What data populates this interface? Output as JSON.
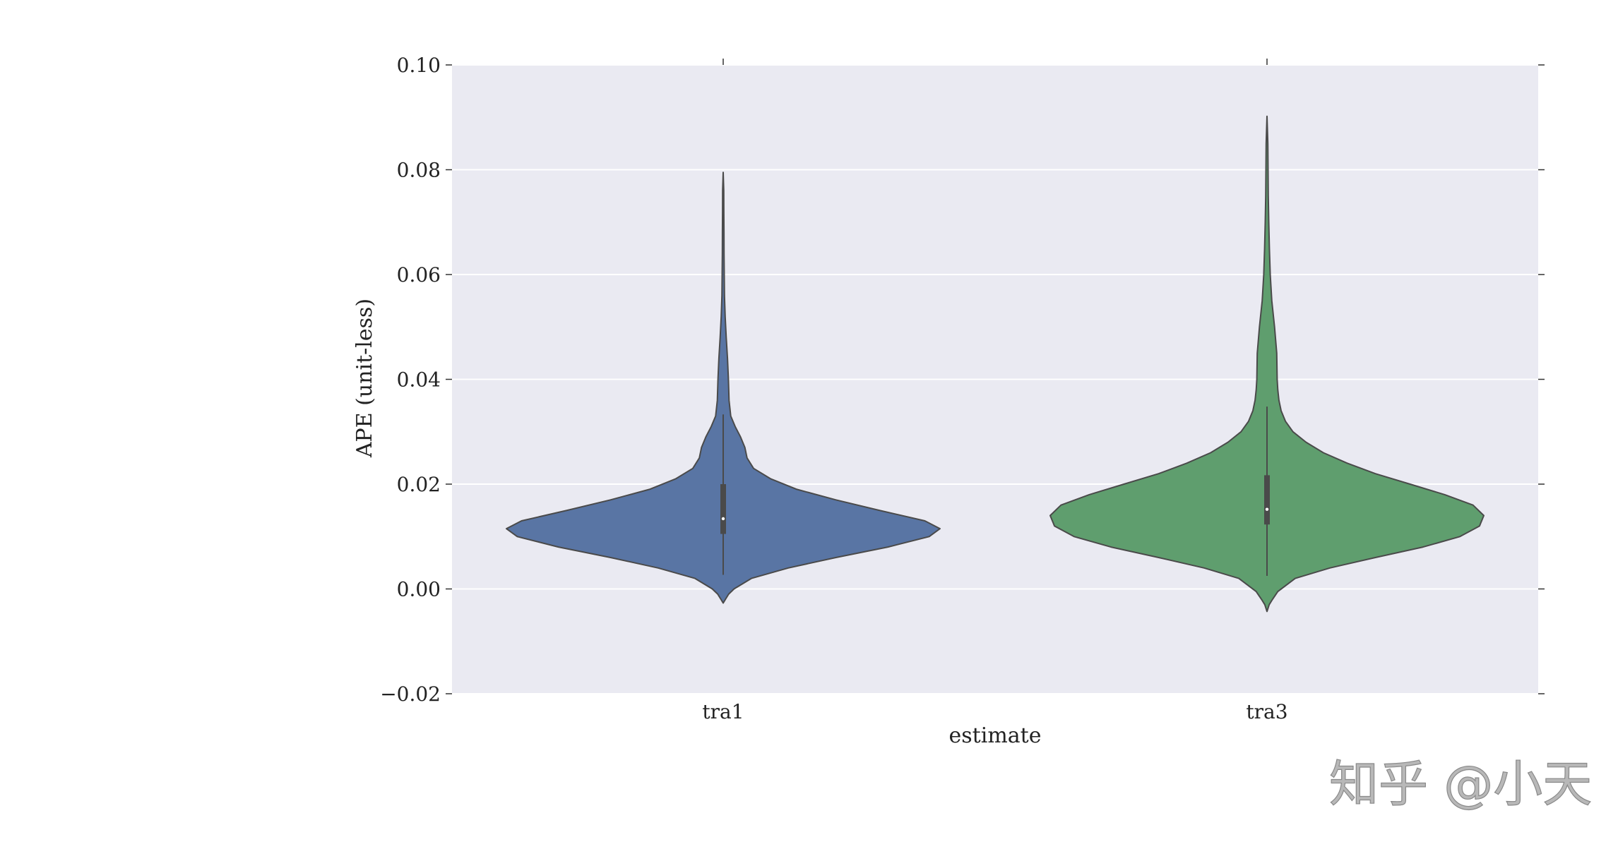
{
  "chart_data": {
    "type": "violin",
    "xlabel": "estimate",
    "ylabel": "APE (unit-less)",
    "ylim": [
      -0.02,
      0.1
    ],
    "yticks": [
      -0.02,
      0.0,
      0.02,
      0.04,
      0.06,
      0.08,
      0.1
    ],
    "ytick_labels": [
      "−0.02",
      "0.00",
      "0.02",
      "0.04",
      "0.06",
      "0.08",
      "0.10"
    ],
    "categories": [
      "tra1",
      "tra3"
    ],
    "grid": true,
    "series": [
      {
        "name": "tra1",
        "color": "#5975a4",
        "min": -0.0027,
        "max": 0.0795,
        "q1": 0.0105,
        "median": 0.0134,
        "q3": 0.02,
        "whisker_low": 0.0027,
        "whisker_high": 0.0333,
        "profile": [
          [
            -0.0027,
            0.0
          ],
          [
            -0.002,
            0.01
          ],
          [
            -0.001,
            0.025
          ],
          [
            0.0,
            0.05
          ],
          [
            0.002,
            0.13
          ],
          [
            0.004,
            0.3
          ],
          [
            0.006,
            0.52
          ],
          [
            0.008,
            0.76
          ],
          [
            0.01,
            0.95
          ],
          [
            0.0115,
            1.0
          ],
          [
            0.013,
            0.93
          ],
          [
            0.015,
            0.72
          ],
          [
            0.017,
            0.52
          ],
          [
            0.019,
            0.34
          ],
          [
            0.021,
            0.22
          ],
          [
            0.023,
            0.14
          ],
          [
            0.025,
            0.11
          ],
          [
            0.027,
            0.1
          ],
          [
            0.029,
            0.08
          ],
          [
            0.031,
            0.055
          ],
          [
            0.033,
            0.035
          ],
          [
            0.036,
            0.027
          ],
          [
            0.04,
            0.024
          ],
          [
            0.044,
            0.02
          ],
          [
            0.048,
            0.014
          ],
          [
            0.052,
            0.009
          ],
          [
            0.056,
            0.006
          ],
          [
            0.06,
            0.005
          ],
          [
            0.064,
            0.004
          ],
          [
            0.068,
            0.0035
          ],
          [
            0.072,
            0.003
          ],
          [
            0.076,
            0.0025
          ],
          [
            0.0795,
            0.0
          ]
        ]
      },
      {
        "name": "tra3",
        "color": "#5f9e6e",
        "min": -0.0043,
        "max": 0.0902,
        "q1": 0.0123,
        "median": 0.0152,
        "q3": 0.0217,
        "whisker_low": 0.0025,
        "whisker_high": 0.0348,
        "profile": [
          [
            -0.0043,
            0.0
          ],
          [
            -0.003,
            0.01
          ],
          [
            -0.002,
            0.025
          ],
          [
            -0.0005,
            0.05
          ],
          [
            0.002,
            0.13
          ],
          [
            0.004,
            0.29
          ],
          [
            0.006,
            0.5
          ],
          [
            0.008,
            0.72
          ],
          [
            0.01,
            0.89
          ],
          [
            0.012,
            0.98
          ],
          [
            0.014,
            1.0
          ],
          [
            0.016,
            0.95
          ],
          [
            0.018,
            0.82
          ],
          [
            0.02,
            0.66
          ],
          [
            0.022,
            0.5
          ],
          [
            0.024,
            0.37
          ],
          [
            0.026,
            0.26
          ],
          [
            0.028,
            0.18
          ],
          [
            0.03,
            0.12
          ],
          [
            0.032,
            0.085
          ],
          [
            0.034,
            0.065
          ],
          [
            0.036,
            0.055
          ],
          [
            0.038,
            0.05
          ],
          [
            0.04,
            0.047
          ],
          [
            0.045,
            0.045
          ],
          [
            0.05,
            0.035
          ],
          [
            0.055,
            0.022
          ],
          [
            0.06,
            0.015
          ],
          [
            0.065,
            0.011
          ],
          [
            0.07,
            0.008
          ],
          [
            0.075,
            0.006
          ],
          [
            0.08,
            0.005
          ],
          [
            0.085,
            0.004
          ],
          [
            0.0902,
            0.0
          ]
        ]
      }
    ]
  },
  "watermark": {
    "text": "知乎 @小天"
  },
  "colors": {
    "plot_background": "#eaeaf2",
    "gridline": "#ffffff",
    "outline": "#4a4a4a"
  }
}
